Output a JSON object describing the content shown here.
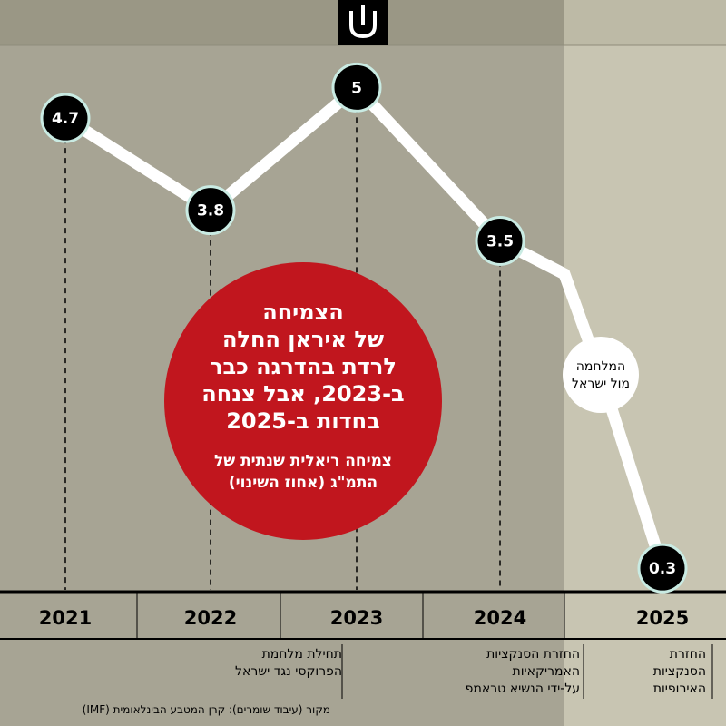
{
  "chart_data": {
    "type": "line",
    "x": [
      "2021",
      "2022",
      "2023",
      "2024",
      "2025"
    ],
    "values": [
      4.7,
      3.8,
      5,
      3.5,
      0.3
    ],
    "value_labels": [
      "4.7",
      "3.8",
      "5",
      "3.5",
      "0.3"
    ],
    "ylim": [
      0,
      5.5
    ],
    "grid": false,
    "title_lines": [
      "הצמיחה",
      "של איראן החלה",
      "לרדת בהדרגה כבר",
      "ב-2023, אבל צנחה",
      "בחדות ב-2025"
    ],
    "subtitle_lines": [
      "צמיחה ריאלית שנתית של",
      "התמ\"ג (אחוז השינוי)"
    ],
    "annotations": [
      {
        "id": "war",
        "lines": [
          "המלחמה",
          "מול ישראל"
        ]
      },
      {
        "id": "proxy-war",
        "lines": [
          "תחילת מלחמת",
          "הפרוקסי נגד ישראל"
        ]
      },
      {
        "id": "us-sanctions",
        "lines": [
          "החזרת הסנקציות",
          "האמריקאיות",
          "על-ידי הנשיא טראמפ"
        ]
      },
      {
        "id": "eu-sanctions",
        "lines": [
          "החזרת",
          "הסנקציות",
          "האירופיות"
        ]
      }
    ],
    "source": "מקור (עיבוד שומרים): קרן המטבע הבינלאומית (IMF)"
  },
  "colors": {
    "background": "#a7a494",
    "highlight_2025": "#c8c5b2",
    "title_circle": "#c1161e",
    "point_fill": "#000000",
    "point_stroke": "#c9ebe3",
    "line": "#ffffff"
  },
  "logo_icon": "shomrim-logo-icon"
}
